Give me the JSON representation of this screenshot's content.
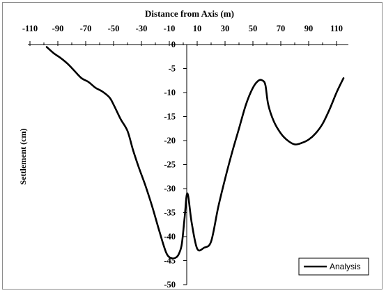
{
  "chart_data": {
    "type": "line",
    "xlabel": "Distance from Axis (m)",
    "ylabel": "Settlement (cm)",
    "xlim": [
      -110,
      120
    ],
    "ylim": [
      -50,
      0
    ],
    "x_ticks": [
      -110,
      -90,
      -70,
      -50,
      -30,
      -10,
      10,
      30,
      50,
      70,
      90,
      110
    ],
    "y_ticks": [
      0,
      -5,
      -10,
      -15,
      -20,
      -25,
      -30,
      -35,
      -40,
      -45,
      -50
    ],
    "grid": false,
    "legend_position": "bottom-right",
    "series": [
      {
        "name": "Analysis",
        "color": "#000000",
        "x": [
          -98,
          -93,
          -88,
          -83,
          -78,
          -73,
          -68,
          -63,
          -58,
          -53,
          -50,
          -45,
          -40,
          -36,
          -32,
          -27,
          -22,
          -17,
          -12,
          -8,
          -5,
          -3,
          -1,
          1,
          3,
          6,
          10,
          15,
          20,
          25,
          30,
          35,
          40,
          45,
          50,
          54,
          57,
          59,
          61,
          65,
          70,
          75,
          80,
          85,
          90,
          95,
          100,
          105,
          110,
          115
        ],
        "y": [
          -0.5,
          -1.8,
          -2.8,
          -4.0,
          -5.5,
          -7.0,
          -7.8,
          -9.0,
          -9.8,
          -11.0,
          -12.5,
          -15.5,
          -18.0,
          -22.0,
          -25.5,
          -29.5,
          -34.0,
          -39.0,
          -43.5,
          -44.5,
          -44.3,
          -43.5,
          -41.5,
          -36.0,
          -31.0,
          -37.0,
          -42.5,
          -42.3,
          -41.0,
          -34.0,
          -28.0,
          -22.5,
          -17.5,
          -12.5,
          -9.0,
          -7.5,
          -7.5,
          -8.5,
          -12.5,
          -16.0,
          -18.5,
          -20.0,
          -20.8,
          -20.5,
          -19.8,
          -18.5,
          -16.5,
          -13.5,
          -10.0,
          -7.0
        ]
      }
    ]
  }
}
